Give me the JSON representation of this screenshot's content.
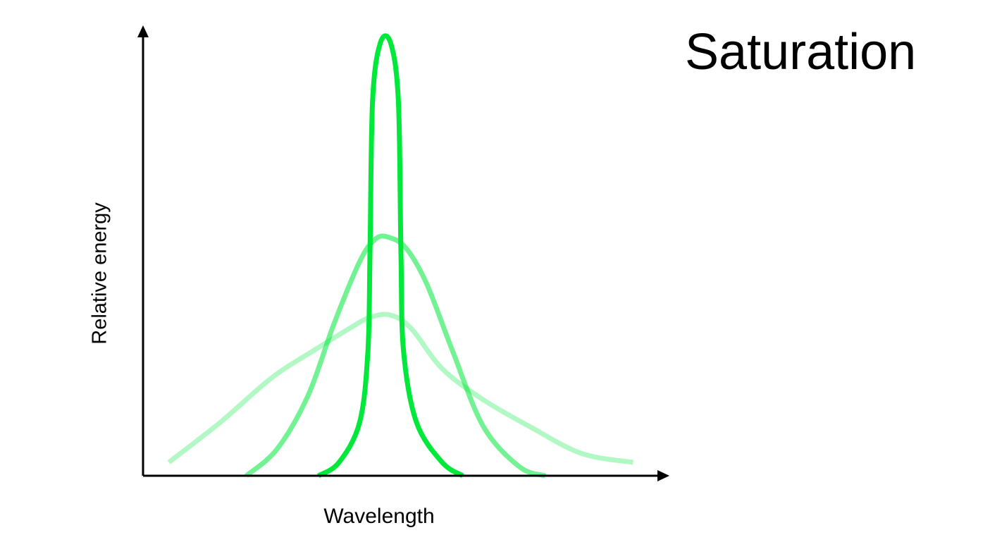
{
  "slide": {
    "title": "Saturation"
  },
  "chart_data": {
    "type": "line",
    "title": "",
    "xlabel": "Wavelength",
    "ylabel": "Relative energy",
    "xlim": [
      0,
      100
    ],
    "ylim": [
      0,
      100
    ],
    "grid": false,
    "legend": "none",
    "x_ticks": [],
    "y_ticks": [],
    "series": [
      {
        "color": "#00e83a",
        "opacity": 1.0,
        "points": [
          [
            34,
            0
          ],
          [
            38,
            3
          ],
          [
            42,
            12
          ],
          [
            43.6,
            28
          ],
          [
            44,
            50
          ],
          [
            44.5,
            84
          ],
          [
            46,
            97
          ],
          [
            48,
            97
          ],
          [
            49.5,
            84
          ],
          [
            50,
            50
          ],
          [
            50.5,
            28
          ],
          [
            53,
            12
          ],
          [
            58,
            3
          ],
          [
            62,
            0
          ]
        ]
      },
      {
        "color": "#00e83a",
        "opacity": 0.55,
        "points": [
          [
            20,
            0
          ],
          [
            26,
            6
          ],
          [
            32,
            18
          ],
          [
            37,
            34
          ],
          [
            42,
            48
          ],
          [
            45,
            53
          ],
          [
            47.5,
            53.5
          ],
          [
            51,
            51
          ],
          [
            55,
            43
          ],
          [
            60,
            28
          ],
          [
            66,
            11
          ],
          [
            73,
            2
          ],
          [
            78,
            0
          ]
        ]
      },
      {
        "color": "#00e83a",
        "opacity": 0.3,
        "points": [
          [
            5,
            3
          ],
          [
            15,
            12
          ],
          [
            25,
            22
          ],
          [
            33,
            28
          ],
          [
            40,
            33
          ],
          [
            44,
            35.5
          ],
          [
            48,
            36
          ],
          [
            52,
            33
          ],
          [
            58,
            24
          ],
          [
            66,
            17
          ],
          [
            75,
            11
          ],
          [
            85,
            5
          ],
          [
            95,
            3
          ]
        ]
      }
    ]
  }
}
